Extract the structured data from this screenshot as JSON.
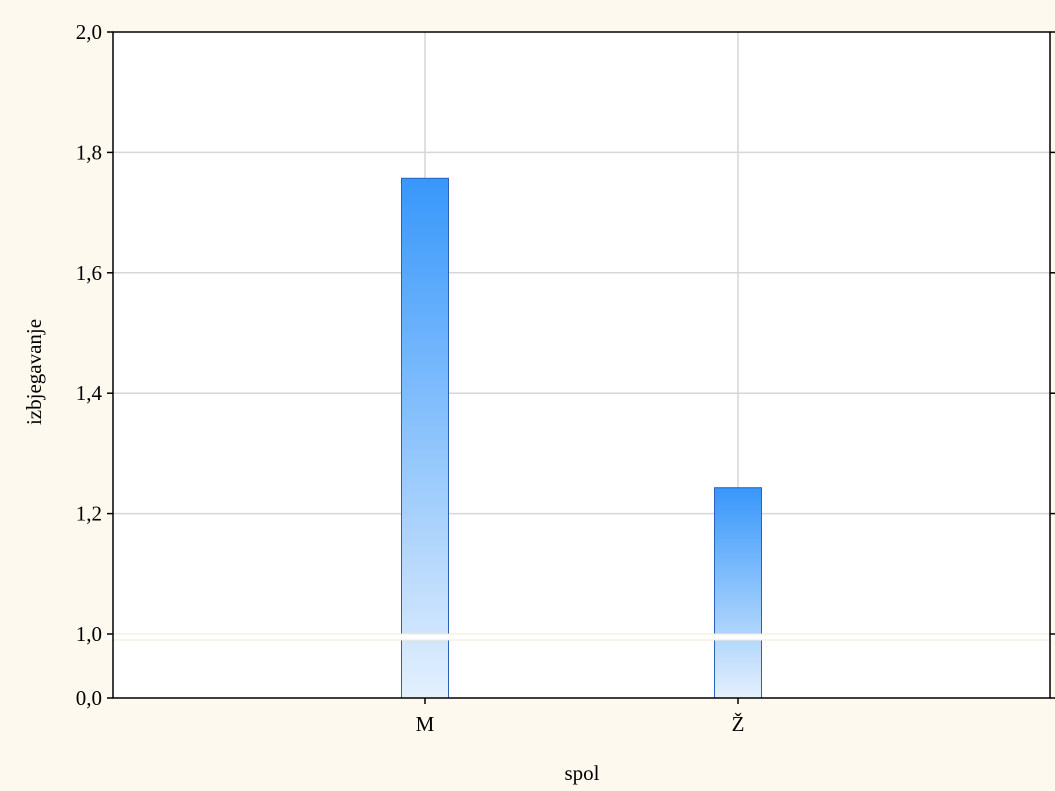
{
  "chart_data": {
    "type": "bar",
    "title": "",
    "xlabel": "spol",
    "ylabel": "izbjegavanje",
    "categories": [
      "M",
      "Ž"
    ],
    "values": [
      1.757,
      1.243
    ],
    "ylim": [
      0.0,
      2.0
    ],
    "axis_break": [
      0.0,
      1.0
    ],
    "yticks": [
      0.0,
      1.0,
      1.2,
      1.4,
      1.6,
      1.8,
      2.0
    ],
    "ytick_labels": [
      "0,0",
      "1,0",
      "1,2",
      "1,4",
      "1,6",
      "1,8",
      "2,0"
    ],
    "grid": true,
    "legend": "none"
  },
  "colors": {
    "background": "#fdf9ee",
    "plot_area": "#ffffff",
    "grid": "#d6d6d6",
    "bar_top": "#3797fb",
    "bar_bottom": "#e4f0fd",
    "bar_stroke": "#2a62b8"
  }
}
